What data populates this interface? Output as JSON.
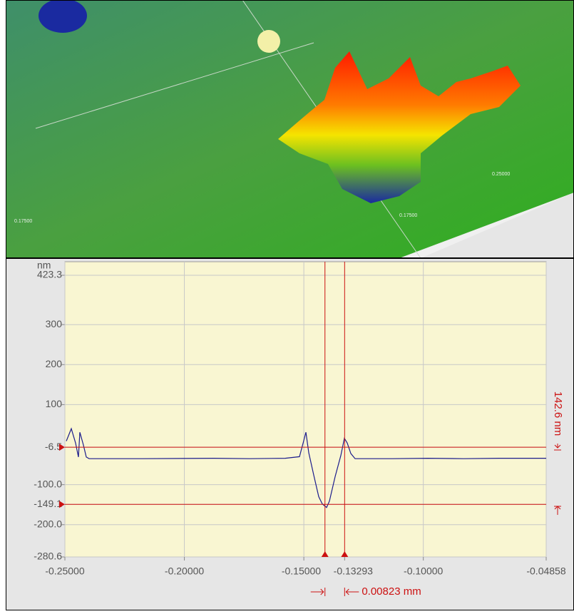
{
  "surface_view": {
    "labels": [
      "0.17500",
      "0.25000",
      "0.17500"
    ]
  },
  "chart_data": {
    "type": "line",
    "y_unit": "nm",
    "x": [
      -0.2494,
      -0.24731,
      -0.24552,
      -0.24433,
      -0.24373,
      -0.24224,
      -0.24105,
      -0.23985,
      -0.21747,
      -0.18763,
      -0.17271,
      -0.15779,
      -0.15182,
      -0.15003,
      -0.14913,
      -0.14794,
      -0.14585,
      -0.14376,
      -0.14227,
      -0.14048,
      -0.13928,
      -0.1369,
      -0.13451,
      -0.13302,
      -0.13182,
      -0.13033,
      -0.12854,
      -0.11303,
      -0.09811,
      -0.08318,
      -0.06826,
      -0.04858
    ],
    "values": [
      9,
      40,
      4,
      -31,
      31,
      -1,
      -31,
      -35,
      -35,
      -34,
      -35,
      -34,
      -30,
      10,
      31,
      -20,
      -76,
      -130,
      -148,
      -157,
      -141,
      -80,
      -27,
      16,
      4,
      -22,
      -35,
      -35,
      -34,
      -35,
      -34,
      -34
    ],
    "color": "#1c1c8c",
    "xlim": [
      -0.25,
      -0.04858
    ],
    "ylim": [
      -280.6,
      423.3
    ],
    "xticks": [
      {
        "value": -0.25,
        "label": "-0.25000"
      },
      {
        "value": -0.2,
        "label": "-0.20000"
      },
      {
        "value": -0.15,
        "label": "-0.15000"
      },
      -0.13293,
      {
        "value": -0.1,
        "label": "-0.10000"
      },
      -0.04858
    ],
    "yticks": [
      423.3,
      300,
      200,
      100,
      -6.5,
      {
        "value": -100,
        "label": "-100.0"
      },
      -149.1,
      {
        "value": -200,
        "label": "-200.0"
      },
      -280.6
    ],
    "grid": true,
    "cursor_x": -0.14116,
    "cursor_color": "#cc1111",
    "height_difference": "142.6 nm",
    "width_difference": "0.00823 mm"
  }
}
